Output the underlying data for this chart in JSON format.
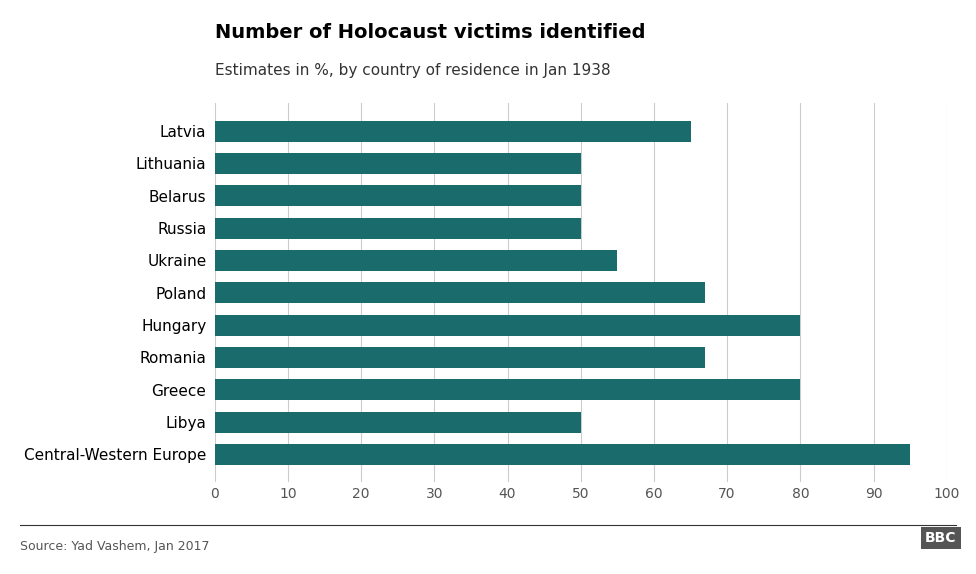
{
  "title": "Number of Holocaust victims identified",
  "subtitle": "Estimates in %, by country of residence in Jan 1938",
  "source": "Source: Yad Vashem, Jan 2017",
  "categories": [
    "Central-Western Europe",
    "Libya",
    "Greece",
    "Romania",
    "Hungary",
    "Poland",
    "Ukraine",
    "Russia",
    "Belarus",
    "Lithuania",
    "Latvia"
  ],
  "values": [
    95,
    50,
    80,
    67,
    80,
    67,
    55,
    50,
    50,
    50,
    65
  ],
  "bar_color": "#1a6b6b",
  "background_color": "#ffffff",
  "xlim": [
    0,
    100
  ],
  "xticks": [
    0,
    10,
    20,
    30,
    40,
    50,
    60,
    70,
    80,
    90,
    100
  ],
  "title_fontsize": 14,
  "subtitle_fontsize": 11,
  "tick_fontsize": 10,
  "label_fontsize": 11,
  "source_fontsize": 9,
  "bar_height": 0.65
}
